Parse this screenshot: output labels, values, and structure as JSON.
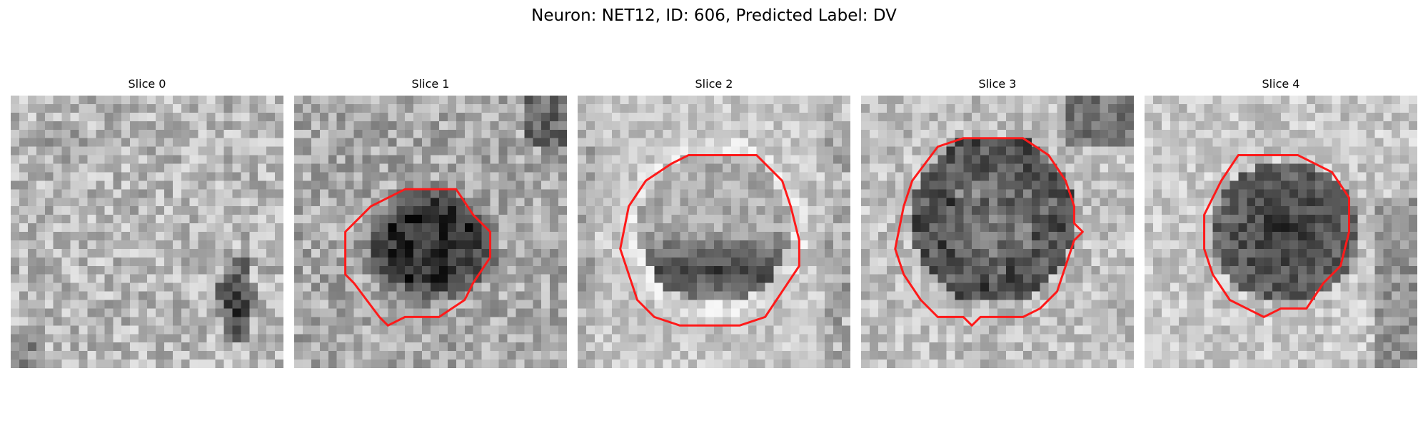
{
  "figure": {
    "title": "Neuron: NET12, ID: 606, Predicted Label: DV",
    "contour_color": "#ff1a1a",
    "colormap": "gray",
    "slices": [
      {
        "title": "Slice 0",
        "has_contour": false
      },
      {
        "title": "Slice 1",
        "has_contour": true
      },
      {
        "title": "Slice 2",
        "has_contour": true
      },
      {
        "title": "Slice 3",
        "has_contour": true
      },
      {
        "title": "Slice 4",
        "has_contour": true
      }
    ]
  }
}
